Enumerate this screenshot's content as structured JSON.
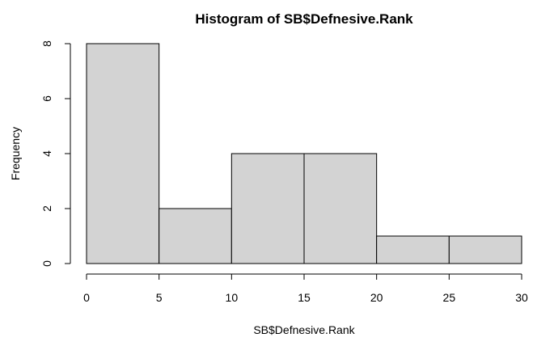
{
  "chart_data": {
    "type": "bar",
    "title": "Histogram of SB$Defnesive.Rank",
    "xlabel": "SB$Defnesive.Rank",
    "ylabel": "Frequency",
    "bins": [
      {
        "x0": 0,
        "x1": 5,
        "count": 8
      },
      {
        "x0": 5,
        "x1": 10,
        "count": 2
      },
      {
        "x0": 10,
        "x1": 15,
        "count": 4
      },
      {
        "x0": 15,
        "x1": 20,
        "count": 4
      },
      {
        "x0": 20,
        "x1": 25,
        "count": 1
      },
      {
        "x0": 25,
        "x1": 30,
        "count": 1
      }
    ],
    "xlim": [
      0,
      30
    ],
    "ylim": [
      0,
      8
    ],
    "xticks": [
      "0",
      "5",
      "10",
      "15",
      "20",
      "25",
      "30"
    ],
    "yticks": [
      "0",
      "2",
      "4",
      "6",
      "8"
    ],
    "bar_color": "#d3d3d3",
    "grid": false,
    "legend": "none"
  }
}
